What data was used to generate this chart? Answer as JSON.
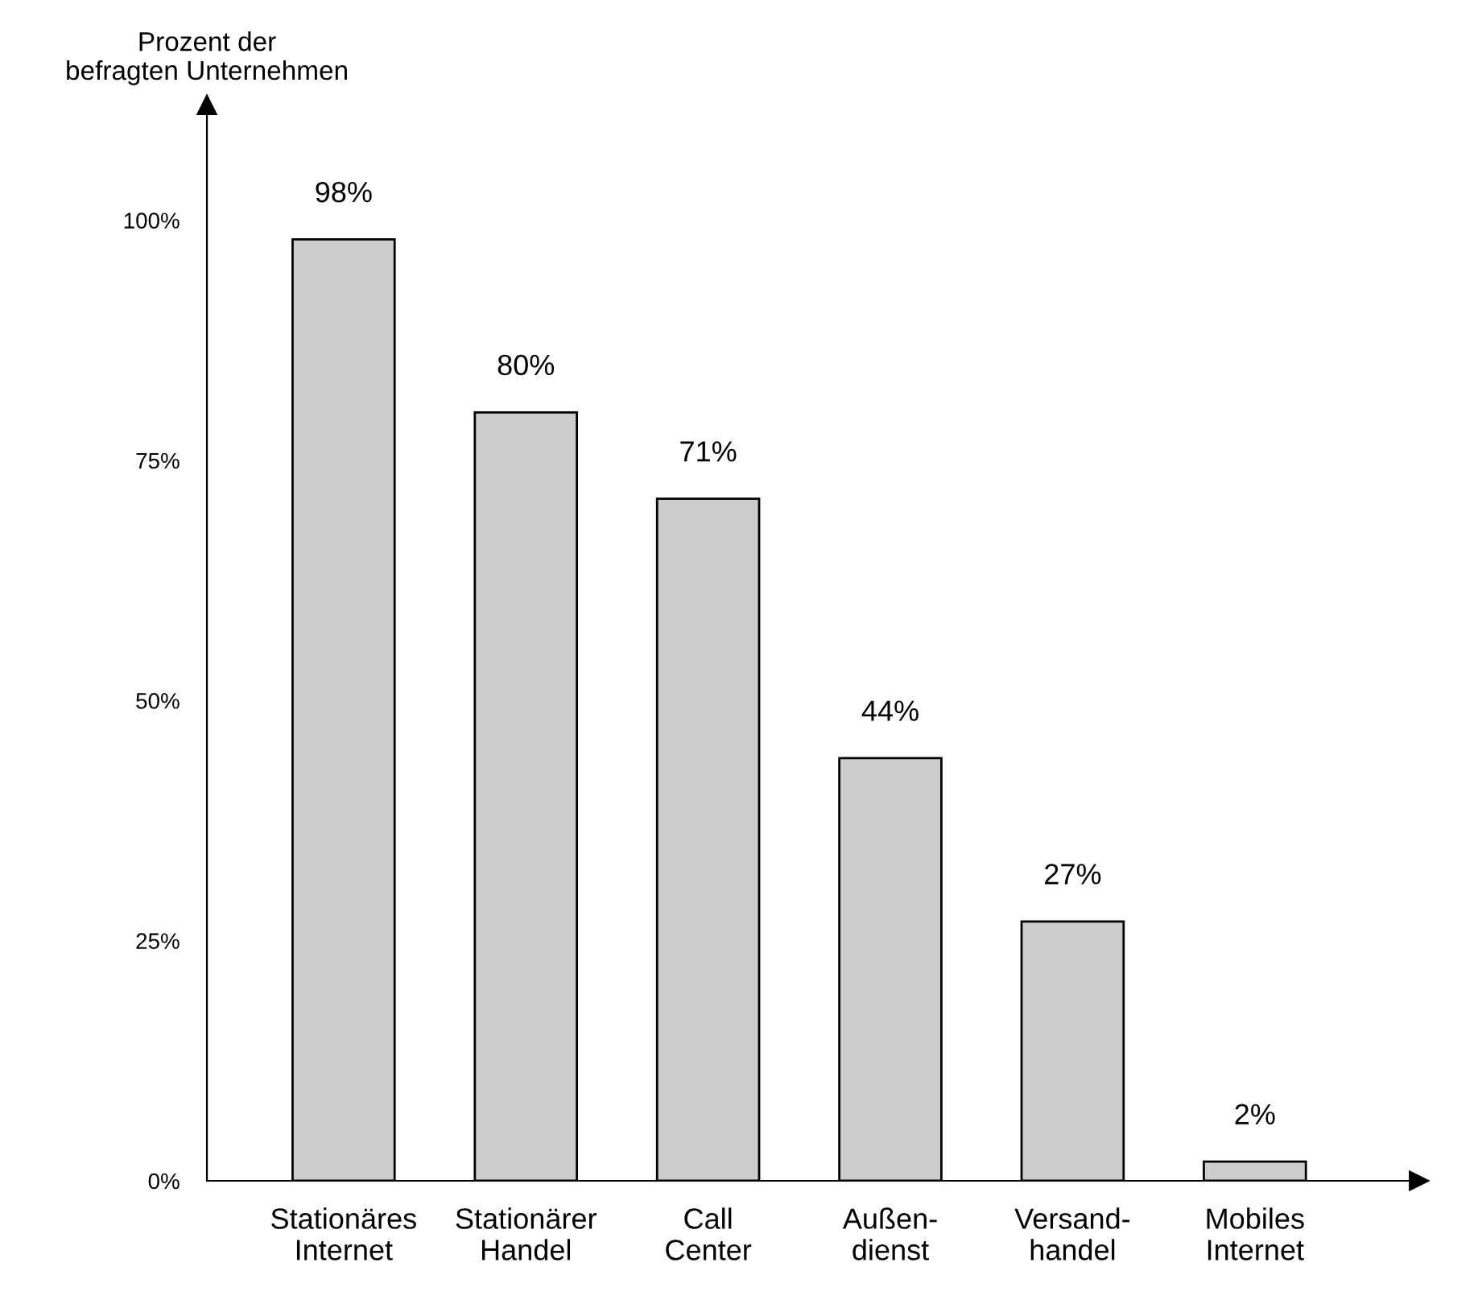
{
  "chart_data": {
    "type": "bar",
    "ylabel": "Prozent der\nbefragten Unternehmen",
    "categories": [
      "Stationäres\nInternet",
      "Stationärer\nHandel",
      "Call\nCenter",
      "Außen-\ndienst",
      "Versand-\nhandel",
      "Mobiles\nInternet"
    ],
    "values": [
      98,
      80,
      71,
      44,
      27,
      2
    ],
    "value_labels": [
      "98%",
      "80%",
      "71%",
      "44%",
      "27%",
      "2%"
    ],
    "color": "#cccccc",
    "ylim": [
      0,
      112
    ],
    "yticks": [
      {
        "value": 0,
        "label": "0%"
      },
      {
        "value": 25,
        "label": "25%"
      },
      {
        "value": 50,
        "label": "50%"
      },
      {
        "value": 75,
        "label": "75%"
      },
      {
        "value": 100,
        "label": "100%"
      }
    ],
    "grid": false,
    "legend": false
  }
}
